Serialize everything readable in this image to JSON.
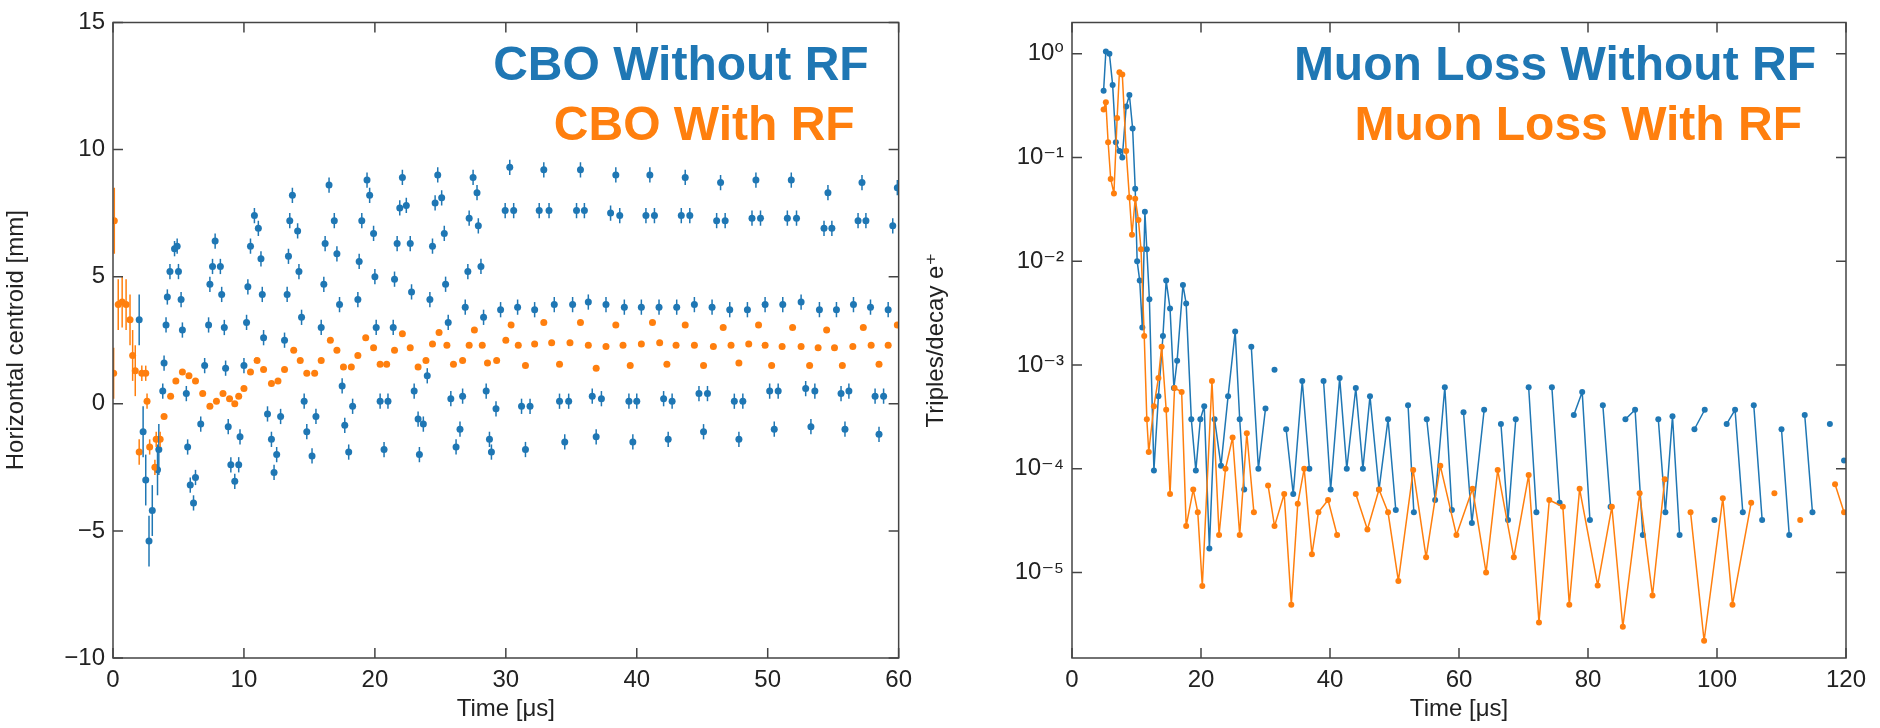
{
  "chart_data": [
    {
      "type": "scatter",
      "xlabel": "Time [μs]",
      "ylabel": "Horizontal centroid [mm]",
      "xlim": [
        0,
        60
      ],
      "xticks": [
        0,
        10,
        20,
        30,
        40,
        50,
        60
      ],
      "ylim": [
        -10,
        15
      ],
      "yticks": [
        {
          "value": -10,
          "label": "−10"
        },
        {
          "value": -5,
          "label": "−5"
        },
        0,
        5,
        10,
        15
      ],
      "legend": "top right",
      "marker": "circle",
      "series": [
        {
          "name": "CBO Without RF",
          "color": "#1f77b4",
          "x": [
            2.0,
            2.3,
            2.5,
            2.75,
            3.0,
            3.4,
            3.5,
            3.8,
            3.9,
            4.05,
            4.15,
            4.35,
            4.7,
            4.9,
            5.0,
            5.2,
            5.3,
            5.6,
            5.7,
            5.9,
            6.15,
            6.3,
            6.7,
            7.0,
            7.3,
            7.4,
            7.6,
            7.8,
            8.2,
            8.3,
            8.5,
            8.6,
            8.8,
            9.0,
            9.3,
            9.6,
            9.7,
            10.0,
            10.2,
            10.3,
            10.5,
            10.8,
            11.1,
            11.3,
            11.4,
            11.5,
            11.8,
            12.1,
            12.3,
            12.5,
            12.8,
            13.1,
            13.3,
            13.4,
            13.5,
            13.7,
            14.1,
            14.2,
            14.4,
            14.6,
            14.8,
            15.2,
            15.5,
            15.9,
            16.1,
            16.2,
            16.5,
            16.9,
            17.1,
            17.3,
            17.5,
            17.7,
            18.0,
            18.3,
            18.7,
            18.8,
            19.0,
            19.4,
            19.6,
            19.9,
            20.0,
            20.1,
            20.4,
            20.7,
            21.0,
            21.4,
            21.5,
            21.7,
            21.9,
            22.1,
            22.4,
            22.7,
            22.8,
            23.0,
            23.3,
            23.4,
            23.7,
            24.0,
            24.2,
            24.4,
            24.6,
            24.8,
            25.1,
            25.3,
            25.4,
            25.6,
            25.8,
            26.2,
            26.5,
            26.7,
            26.9,
            27.1,
            27.2,
            27.5,
            27.8,
            27.9,
            28.1,
            28.3,
            28.5,
            28.75,
            28.9,
            29.25,
            29.6,
            29.95,
            30.3,
            30.6,
            30.9,
            31.2,
            31.5,
            31.85,
            32.2,
            32.55,
            32.9,
            33.3,
            33.7,
            34.1,
            34.5,
            34.8,
            35.1,
            35.4,
            35.7,
            36.0,
            36.3,
            36.6,
            36.9,
            37.3,
            37.65,
            38.0,
            38.4,
            38.7,
            39.05,
            39.4,
            39.7,
            40.0,
            40.35,
            40.7,
            41.0,
            41.35,
            41.7,
            42.05,
            42.4,
            42.7,
            43.05,
            43.4,
            43.7,
            44.05,
            44.4,
            44.75,
            45.1,
            45.4,
            45.75,
            46.1,
            46.4,
            46.75,
            47.1,
            47.45,
            47.8,
            48.1,
            48.45,
            48.8,
            49.1,
            49.45,
            49.8,
            50.15,
            50.5,
            50.8,
            51.15,
            51.5,
            51.8,
            52.2,
            52.55,
            52.9,
            53.3,
            53.6,
            53.95,
            54.3,
            54.6,
            54.9,
            55.25,
            55.6,
            55.9,
            56.2,
            56.55,
            56.9,
            57.2,
            57.5,
            57.85,
            58.2,
            58.5,
            58.85,
            59.2,
            59.55,
            59.9
          ],
          "values": [
            3.3,
            -1.1,
            -3.0,
            -5.4,
            -4.2,
            -2.6,
            -1.8,
            0.5,
            1.6,
            3.1,
            4.2,
            5.2,
            6.1,
            6.2,
            5.2,
            4.1,
            2.9,
            0.4,
            -1.7,
            -3.2,
            -3.9,
            -2.9,
            -0.8,
            1.5,
            3.1,
            4.7,
            5.4,
            6.4,
            5.4,
            4.3,
            3.0,
            1.4,
            -0.9,
            -2.4,
            -3.05,
            -2.4,
            -1.3,
            1.5,
            3.2,
            4.6,
            6.2,
            7.4,
            6.9,
            5.7,
            4.3,
            2.6,
            -0.4,
            -1.4,
            -2.7,
            -2.0,
            -0.5,
            2.5,
            4.3,
            5.8,
            7.2,
            8.2,
            6.8,
            5.2,
            3.4,
            0.1,
            -1.1,
            -2.05,
            -0.5,
            3.0,
            4.7,
            6.3,
            8.6,
            7.2,
            5.9,
            3.9,
            0.7,
            -0.85,
            -1.9,
            -0.1,
            4.1,
            5.6,
            7.2,
            8.8,
            8.2,
            6.7,
            5.0,
            3.0,
            0.1,
            -1.8,
            0.1,
            3.0,
            4.9,
            6.3,
            7.7,
            8.9,
            7.8,
            6.3,
            4.4,
            0.5,
            -0.6,
            -2.0,
            -0.8,
            1.1,
            4.1,
            6.2,
            7.9,
            9.0,
            8.1,
            6.7,
            4.7,
            3.2,
            0.2,
            -1.7,
            -1.0,
            0.3,
            3.8,
            5.2,
            7.3,
            8.9,
            8.3,
            7.0,
            5.4,
            3.4,
            0.5,
            -1.4,
            -1.9,
            -0.2,
            3.7,
            7.6,
            9.3,
            7.6,
            3.8,
            -0.1,
            -1.8,
            -0.1,
            3.7,
            7.6,
            9.2,
            7.6,
            3.9,
            0.1,
            -1.5,
            0.1,
            3.9,
            7.6,
            9.2,
            7.6,
            4.0,
            0.3,
            -1.3,
            0.2,
            3.9,
            7.5,
            9.0,
            7.4,
            3.8,
            0.1,
            -1.5,
            0.1,
            3.8,
            7.4,
            9.0,
            7.4,
            3.8,
            0.2,
            -1.4,
            0.1,
            3.8,
            7.4,
            8.9,
            7.4,
            3.9,
            0.4,
            -1.1,
            0.4,
            3.8,
            7.2,
            8.7,
            7.2,
            3.7,
            0.1,
            -1.4,
            0.1,
            3.7,
            7.3,
            8.8,
            7.3,
            3.9,
            0.5,
            -1.0,
            0.5,
            3.9,
            7.3,
            8.8,
            7.3,
            4.0,
            0.6,
            -0.9,
            0.5,
            3.7,
            6.9,
            8.3,
            6.9,
            3.7,
            0.4,
            -1.0,
            0.5,
            3.9,
            7.2,
            8.7,
            7.2,
            3.8,
            0.3,
            -1.2,
            0.3,
            3.7,
            7.0,
            8.5
          ],
          "errors": [
            1,
            1,
            1,
            1,
            1,
            1,
            1,
            0.3,
            0.3,
            0.3,
            0.3,
            0.3,
            0.3,
            0.3,
            0.3,
            0.3,
            0.3,
            0.3,
            0.3,
            0.3,
            0.3,
            0.3,
            0.3,
            0.3,
            0.3,
            0.3,
            0.3,
            0.3,
            0.3,
            0.3,
            0.3,
            0.3,
            0.3,
            0.3,
            0.3,
            0.3,
            0.3,
            0.3,
            0.3,
            0.3,
            0.3,
            0.3,
            0.3,
            0.3,
            0.3,
            0.3,
            0.3,
            0.3,
            0.3,
            0.3,
            0.3,
            0.3,
            0.3,
            0.3,
            0.3,
            0.3,
            0.3,
            0.3,
            0.3,
            0.3,
            0.3,
            0.3,
            0.3,
            0.3,
            0.3,
            0.3,
            0.3,
            0.3,
            0.3,
            0.3,
            0.3,
            0.3,
            0.3,
            0.3,
            0.3,
            0.3,
            0.3,
            0.3,
            0.3,
            0.3,
            0.3,
            0.3,
            0.3,
            0.3,
            0.3,
            0.3,
            0.3,
            0.3,
            0.3,
            0.3,
            0.3,
            0.3,
            0.3,
            0.3,
            0.3,
            0.3,
            0.3,
            0.3,
            0.3,
            0.3,
            0.3,
            0.3,
            0.3,
            0.3,
            0.3,
            0.3,
            0.3,
            0.3,
            0.3,
            0.3,
            0.3,
            0.3,
            0.3,
            0.3,
            0.3,
            0.3,
            0.3,
            0.3,
            0.3,
            0.3,
            0.3,
            0.3,
            0.3,
            0.3,
            0.3,
            0.3,
            0.3,
            0.3,
            0.3,
            0.3,
            0.3,
            0.3,
            0.3,
            0.3,
            0.3,
            0.3,
            0.3,
            0.3,
            0.3,
            0.3,
            0.3,
            0.3,
            0.3,
            0.3,
            0.3,
            0.3,
            0.3,
            0.3,
            0.3,
            0.3,
            0.3,
            0.3,
            0.3,
            0.3,
            0.3,
            0.3,
            0.3,
            0.3,
            0.3,
            0.3,
            0.3,
            0.3,
            0.3,
            0.3,
            0.3,
            0.3,
            0.3,
            0.3,
            0.3,
            0.3,
            0.3,
            0.3,
            0.3,
            0.3,
            0.3,
            0.3,
            0.3,
            0.3,
            0.3,
            0.3,
            0.3,
            0.3,
            0.3,
            0.3,
            0.3,
            0.3,
            0.3,
            0.3,
            0.3,
            0.3,
            0.3,
            0.3,
            0.3,
            0.3,
            0.3,
            0.3,
            0.3,
            0.3,
            0.3,
            0.3,
            0.3,
            0.3,
            0.3,
            0.3,
            0.3,
            0.3,
            0.3,
            0.3,
            0.3,
            0.3,
            0.3,
            0.3,
            0.3
          ]
        },
        {
          "name": "CBO With RF",
          "color": "#ff7f0e",
          "x": [
            0.05,
            0.1,
            0.4,
            0.7,
            1.0,
            1.3,
            1.5,
            1.7,
            2.0,
            2.2,
            2.5,
            2.6,
            2.8,
            3.2,
            3.3,
            3.6,
            3.9,
            4.4,
            4.8,
            5.3,
            5.8,
            6.3,
            6.85,
            7.4,
            7.9,
            8.4,
            8.9,
            9.3,
            9.6,
            10.0,
            10.5,
            11.0,
            11.5,
            12.1,
            12.6,
            13.1,
            13.8,
            14.3,
            14.8,
            15.4,
            15.9,
            16.6,
            17.1,
            17.6,
            18.2,
            18.7,
            19.3,
            19.9,
            20.4,
            20.9,
            21.5,
            22.1,
            22.7,
            23.3,
            23.9,
            24.4,
            24.9,
            25.5,
            26.0,
            26.7,
            27.2,
            27.6,
            28.2,
            28.6,
            29.3,
            30.0,
            30.4,
            30.95,
            31.5,
            32.2,
            32.9,
            33.5,
            34.1,
            34.9,
            35.7,
            36.3,
            36.9,
            37.65,
            38.4,
            38.95,
            39.5,
            40.35,
            41.2,
            41.75,
            42.3,
            43.0,
            43.7,
            44.4,
            45.1,
            45.85,
            46.6,
            47.2,
            47.8,
            48.55,
            49.3,
            49.8,
            50.3,
            51.1,
            51.9,
            52.55,
            53.2,
            53.85,
            54.5,
            55.1,
            55.7,
            56.5,
            57.3,
            57.9,
            58.5,
            59.2,
            59.9
          ],
          "values": [
            1.2,
            7.2,
            3.9,
            4.0,
            3.9,
            3.3,
            1.9,
            1.3,
            -1.9,
            1.2,
            1.2,
            0.1,
            -1.7,
            -2.5,
            -1.4,
            -1.4,
            -0.5,
            0.3,
            0.9,
            1.25,
            1.1,
            0.9,
            0.4,
            -0.1,
            0.1,
            0.4,
            0.2,
            0.0,
            0.3,
            0.6,
            1.25,
            1.7,
            1.35,
            0.8,
            0.9,
            1.35,
            2.1,
            1.7,
            1.2,
            1.2,
            1.7,
            2.5,
            2.1,
            1.45,
            1.45,
            1.9,
            2.6,
            2.2,
            1.55,
            1.55,
            2.1,
            2.75,
            2.2,
            1.45,
            1.7,
            2.35,
            2.8,
            2.3,
            1.55,
            1.7,
            2.3,
            2.9,
            2.3,
            1.6,
            1.7,
            2.5,
            3.1,
            2.3,
            1.5,
            2.35,
            3.2,
            2.4,
            1.55,
            2.4,
            3.2,
            2.3,
            1.4,
            2.25,
            3.1,
            2.3,
            1.5,
            2.35,
            3.2,
            2.4,
            1.55,
            2.3,
            3.1,
            2.3,
            1.5,
            2.25,
            3.0,
            2.3,
            1.6,
            2.35,
            3.1,
            2.3,
            1.5,
            2.25,
            3.0,
            2.25,
            1.5,
            2.2,
            2.9,
            2.2,
            1.5,
            2.25,
            3.0,
            2.3,
            1.55,
            2.3,
            3.1
          ],
          "errors": [
            1,
            1.3,
            1,
            1,
            1,
            1,
            1,
            1,
            0.5,
            0.3,
            0.3,
            0.3,
            0.3,
            0.3,
            0.3,
            0.3,
            null,
            null,
            null,
            null,
            null,
            null,
            null,
            null,
            null,
            null,
            null,
            null,
            null,
            null,
            null,
            null,
            null,
            null,
            null,
            null,
            null,
            null,
            null,
            null,
            null,
            null,
            null,
            null,
            null,
            null,
            null,
            null,
            null,
            null,
            null,
            null,
            null,
            null,
            null,
            null,
            null,
            null,
            null,
            null,
            null,
            null,
            null,
            null,
            null,
            null,
            null,
            null,
            null,
            null,
            null,
            null,
            null,
            null,
            null,
            null,
            null,
            null,
            null,
            null,
            null,
            null,
            null,
            null,
            null,
            null,
            null,
            null,
            null,
            null,
            null,
            null,
            null,
            null,
            null,
            null,
            null,
            null,
            null,
            null,
            null,
            null,
            null,
            null,
            null,
            null,
            null,
            null,
            null,
            null,
            null
          ]
        }
      ]
    },
    {
      "type": "line",
      "xlabel": "Time [μs]",
      "ylabel": "Triples/decay e⁺",
      "xlim": [
        0,
        120
      ],
      "xticks": [
        0,
        20,
        40,
        60,
        80,
        100,
        120
      ],
      "ylim": [
        1.5e-06,
        2
      ],
      "yticks": [
        {
          "value": 1e-05,
          "label": "10⁻⁵"
        },
        {
          "value": 0.0001,
          "label": "10⁻⁴"
        },
        {
          "value": 0.001,
          "label": "10⁻³"
        },
        {
          "value": 0.01,
          "label": "10⁻²"
        },
        {
          "value": 0.1,
          "label": "10⁻¹"
        },
        {
          "value": 1,
          "label": "10⁰"
        }
      ],
      "log": "y",
      "legend": "top right",
      "marker": "circle",
      "series": [
        {
          "name": "Muon Loss Without RF",
          "color": "#1f77b4",
          "x": [
            4.9,
            5.25,
            5.8,
            6.3,
            6.8,
            7.35,
            7.8,
            8.4,
            8.9,
            9.4,
            9.8,
            10.1,
            10.5,
            10.9,
            11.3,
            11.6,
            12.0,
            12.7,
            13.4,
            14.1,
            14.6,
            15.2,
            15.8,
            16.3,
            17.2,
            17.7,
            18.5,
            19.2,
            19.9,
            20.5,
            21.3,
            22.1,
            23.1,
            24.2,
            25.3,
            26.0,
            26.7,
            27.2,
            27.8,
            28.9,
            30.0,
            30.7,
            31.4,
            32.5,
            33.2,
            34.3,
            35.7,
            36.8,
            37.9,
            39.0,
            40.1,
            41.5,
            42.6,
            44.0,
            45.1,
            46.2,
            47.6,
            49,
            50.2,
            51.0,
            52.1,
            53.0,
            53.9,
            55,
            56.3,
            57.8,
            58.9,
            59.6,
            60.7,
            62,
            63.9,
            65,
            66.5,
            67.6,
            68.8,
            69.5,
            70.8,
            72,
            72.9,
            74.4,
            75.6,
            76.5,
            77.8,
            79.1,
            80.3,
            81.5,
            82.3,
            83.5,
            84.6,
            85.8,
            87.3,
            88.5,
            89.4,
            90.9,
            92,
            93.1,
            94.2,
            95.5,
            96.5,
            98.1,
            99,
            99.6,
            100.2,
            101.5,
            102.8,
            104,
            104.7,
            105.7,
            107,
            108.2,
            110,
            111.2,
            112.5,
            113.6,
            114.8,
            116,
            117.5,
            118.5,
            119.7
          ],
          "values": [
            0.44,
            1.05,
            1.0,
            0.5,
            0.14,
            0.115,
            0.1,
            0.31,
            0.4,
            0.19,
            0.05,
            0.01,
            0.0065,
            0.0023,
            0.03,
            0.013,
            0.0043,
            9.6e-05,
            0.0005,
            0.0019,
            0.0065,
            0.0035,
            0.0006,
            0.0011,
            0.0059,
            0.0039,
            0.0003,
            9.6e-05,
            0.0003,
            0.0004,
            1.7e-05,
            0.0003,
            0.000107,
            0.0005,
            0.0021,
            0.0003,
            6.3e-05,
            null,
            0.0015,
            0.0001,
            0.00038,
            null,
            0.0009,
            null,
            0.00024,
            5.7e-05,
            0.0007,
            0.0001,
            null,
            0.0007,
            6.3e-05,
            0.00075,
            0.0001,
            0.0006,
            0.0001,
            0.0005,
            6.3e-05,
            0.0003,
            4e-05,
            null,
            0.00041,
            3.8e-05,
            null,
            0.0003,
            5e-05,
            0.00061,
            4e-05,
            null,
            0.00035,
            3e-05,
            0.00037,
            null,
            0.00027,
            3.2e-05,
            0.0003,
            null,
            0.00061,
            3.8e-05,
            null,
            0.00061,
            4.7e-05,
            null,
            0.00033,
            0.00055,
            3.2e-05,
            null,
            0.00041,
            4.3e-05,
            null,
            0.0003,
            0.00037,
            2.3e-05,
            null,
            0.0003,
            3.8e-05,
            0.00032,
            2.3e-05,
            null,
            0.00024,
            0.00037,
            null,
            3.2e-05,
            null,
            0.00027,
            0.00037,
            3.8e-05,
            null,
            0.00041,
            3.2e-05,
            null,
            0.00024,
            2.3e-05,
            null,
            0.00033,
            3.8e-05,
            null,
            0.00027,
            null,
            0.00012
          ]
        },
        {
          "name": "Muon Loss With RF",
          "color": "#ff7f0e",
          "x": [
            4.9,
            5.25,
            5.6,
            6.0,
            6.5,
            7.0,
            7.35,
            7.8,
            8.4,
            8.9,
            9.3,
            9.8,
            10.3,
            10.7,
            11.2,
            11.6,
            11.9,
            12.7,
            13.4,
            13.9,
            14.6,
            15.2,
            15.9,
            17.0,
            17.7,
            18.8,
            19.5,
            20.2,
            21.7,
            22.8,
            23.8,
            24.9,
            26.0,
            27.1,
            28.2,
            29.5,
            30.4,
            31.4,
            32.9,
            34.0,
            35.0,
            36.0,
            37.2,
            38.2,
            39.7,
            41.1,
            42.9,
            44.0,
            45.8,
            47.6,
            49.0,
            50.6,
            52.9,
            54.9,
            57.1,
            59.6,
            62.1,
            64.2,
            66,
            68.5,
            70.8,
            72.4,
            74.0,
            76.1,
            77.1,
            78.7,
            81.5,
            83.7,
            85.4,
            88,
            90,
            91.9,
            93.7,
            95.9,
            98,
            100.9,
            102.4,
            105.3,
            106.7,
            108.9,
            111,
            112.9,
            115.4,
            118.3,
            119.7
          ],
          "values": [
            0.29,
            0.34,
            0.14,
            0.062,
            0.045,
            0.24,
            0.66,
            0.63,
            0.115,
            0.041,
            0.018,
            0.04,
            0.025,
            0.013,
            0.0019,
            0.0003,
            0.000145,
            0.0004,
            0.00075,
            0.0015,
            0.00037,
            5.7e-05,
            0.0006,
            0.00055,
            2.8e-05,
            6.3e-05,
            3.8e-05,
            7.4e-06,
            0.0007,
            2.3e-05,
            0.0001,
            0.0002,
            2.3e-05,
            0.00022,
            3.8e-05,
            null,
            6.9e-05,
            2.8e-05,
            5.7e-05,
            4.9e-06,
            4.6e-05,
            0.0001,
            1.5e-05,
            3.8e-05,
            5e-05,
            2.3e-05,
            null,
            5.7e-05,
            2.6e-05,
            6.3e-05,
            3.8e-05,
            8.3e-06,
            9.7e-05,
            1.4e-05,
            0.000107,
            2.3e-05,
            6.4e-05,
            1e-05,
            9.7e-05,
            1.4e-05,
            8.7e-05,
            3.3e-06,
            5e-05,
            4.3e-05,
            4.9e-06,
            6.4e-05,
            7.5e-06,
            4.3e-05,
            3e-06,
            5.8e-05,
            6e-06,
            7.9e-05,
            null,
            3.8e-05,
            2.2e-06,
            5.2e-05,
            4.9e-06,
            4.7e-05,
            null,
            5.8e-05,
            null,
            3.2e-05,
            null,
            7.1e-05,
            3.8e-05
          ]
        }
      ]
    }
  ]
}
